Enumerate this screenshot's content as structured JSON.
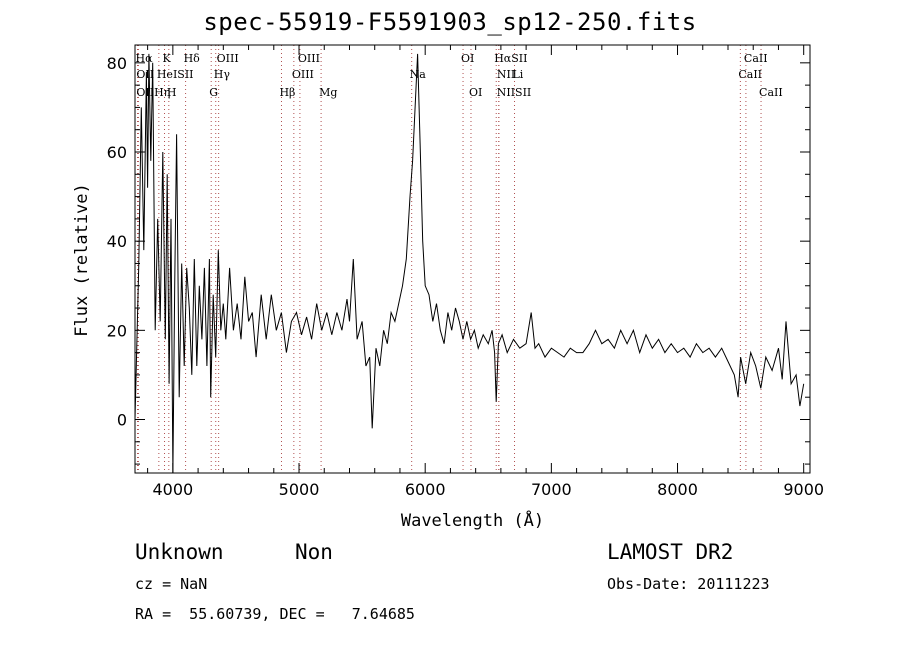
{
  "title": "spec-55919-F5591903_sp12-250.fits",
  "xlabel": "Wavelength (Å)",
  "ylabel": "Flux (relative)",
  "info": {
    "class_text": "Unknown",
    "subclass_text": "Non",
    "survey": "LAMOST DR2",
    "cz": "cz = NaN",
    "obs_date": "Obs-Date: 20111223",
    "radec": "RA =  55.60739, DEC =   7.64685"
  },
  "colors": {
    "line_marker": "#b05050",
    "spectrum": "#000000",
    "axes": "#000000"
  },
  "chart_data": {
    "type": "line",
    "xlim": [
      3700,
      9050
    ],
    "ylim": [
      -12,
      84
    ],
    "x_ticks": [
      4000,
      5000,
      6000,
      7000,
      8000,
      9000
    ],
    "y_ticks": [
      0,
      20,
      40,
      60,
      80
    ],
    "x_minor_step": 200,
    "y_minor_step": 5,
    "grid": false,
    "lines": [
      {
        "label": "Hα",
        "wave": 3720,
        "row": 0
      },
      {
        "label": "K",
        "wave": 3934,
        "row": 0
      },
      {
        "label": "Hδ",
        "wave": 4101,
        "row": 0
      },
      {
        "label": "OIII",
        "wave": 4363,
        "row": 0
      },
      {
        "label": "OIII",
        "wave": 5007,
        "row": 0
      },
      {
        "label": "OI",
        "wave": 6300,
        "row": 0
      },
      {
        "label": "HαSII",
        "wave": 6563,
        "row": 0
      },
      {
        "label": "CaII",
        "wave": 8542,
        "row": 0
      },
      {
        "label": "OII",
        "wave": 3727,
        "row": 1
      },
      {
        "label": "HeISII",
        "wave": 3889,
        "row": 1
      },
      {
        "label": "Hγ",
        "wave": 4340,
        "row": 1
      },
      {
        "label": "OIII",
        "wave": 4959,
        "row": 1
      },
      {
        "label": "Na",
        "wave": 5893,
        "row": 1
      },
      {
        "label": "NII",
        "wave": 6584,
        "row": 1
      },
      {
        "label": "Li",
        "wave": 6708,
        "row": 1
      },
      {
        "label": "CaII",
        "wave": 8498,
        "row": 1
      },
      {
        "label": "OIIHη",
        "wave": 3727,
        "row": 2
      },
      {
        "label": "H",
        "wave": 3968,
        "row": 2
      },
      {
        "label": "G",
        "wave": 4304,
        "row": 2
      },
      {
        "label": "Hβ",
        "wave": 4861,
        "row": 2
      },
      {
        "label": "Mg",
        "wave": 5175,
        "row": 2
      },
      {
        "label": "OI",
        "wave": 6363,
        "row": 2
      },
      {
        "label": "NIISII",
        "wave": 6583,
        "row": 2
      },
      {
        "label": "CaII",
        "wave": 8662,
        "row": 2
      }
    ],
    "series": [
      {
        "points": [
          [
            3700,
            0
          ],
          [
            3730,
            35
          ],
          [
            3750,
            70
          ],
          [
            3770,
            38
          ],
          [
            3790,
            78
          ],
          [
            3800,
            52
          ],
          [
            3810,
            82
          ],
          [
            3825,
            58
          ],
          [
            3840,
            80
          ],
          [
            3860,
            20
          ],
          [
            3880,
            45
          ],
          [
            3900,
            22
          ],
          [
            3920,
            60
          ],
          [
            3940,
            18
          ],
          [
            3955,
            55
          ],
          [
            3970,
            8
          ],
          [
            3985,
            45
          ],
          [
            4000,
            -12
          ],
          [
            4015,
            30
          ],
          [
            4030,
            64
          ],
          [
            4050,
            5
          ],
          [
            4070,
            35
          ],
          [
            4090,
            12
          ],
          [
            4110,
            34
          ],
          [
            4130,
            25
          ],
          [
            4150,
            10
          ],
          [
            4170,
            36
          ],
          [
            4190,
            12
          ],
          [
            4210,
            30
          ],
          [
            4230,
            18
          ],
          [
            4250,
            34
          ],
          [
            4270,
            12
          ],
          [
            4290,
            36
          ],
          [
            4300,
            5
          ],
          [
            4320,
            28
          ],
          [
            4340,
            14
          ],
          [
            4360,
            38
          ],
          [
            4380,
            20
          ],
          [
            4400,
            26
          ],
          [
            4420,
            18
          ],
          [
            4450,
            34
          ],
          [
            4480,
            20
          ],
          [
            4510,
            26
          ],
          [
            4540,
            18
          ],
          [
            4570,
            32
          ],
          [
            4600,
            22
          ],
          [
            4630,
            24
          ],
          [
            4660,
            14
          ],
          [
            4700,
            28
          ],
          [
            4740,
            18
          ],
          [
            4780,
            28
          ],
          [
            4820,
            20
          ],
          [
            4860,
            24
          ],
          [
            4900,
            15
          ],
          [
            4940,
            22
          ],
          [
            4980,
            24
          ],
          [
            5020,
            19
          ],
          [
            5060,
            23
          ],
          [
            5100,
            18
          ],
          [
            5140,
            26
          ],
          [
            5180,
            20
          ],
          [
            5220,
            24
          ],
          [
            5260,
            19
          ],
          [
            5300,
            24
          ],
          [
            5340,
            20
          ],
          [
            5380,
            27
          ],
          [
            5400,
            22
          ],
          [
            5430,
            36
          ],
          [
            5460,
            18
          ],
          [
            5500,
            22
          ],
          [
            5530,
            12
          ],
          [
            5560,
            14
          ],
          [
            5580,
            -2
          ],
          [
            5610,
            16
          ],
          [
            5640,
            12
          ],
          [
            5670,
            20
          ],
          [
            5700,
            17
          ],
          [
            5730,
            24
          ],
          [
            5760,
            22
          ],
          [
            5790,
            26
          ],
          [
            5820,
            30
          ],
          [
            5850,
            36
          ],
          [
            5880,
            50
          ],
          [
            5900,
            58
          ],
          [
            5920,
            70
          ],
          [
            5940,
            82
          ],
          [
            5960,
            62
          ],
          [
            5980,
            40
          ],
          [
            6000,
            30
          ],
          [
            6030,
            28
          ],
          [
            6060,
            22
          ],
          [
            6090,
            26
          ],
          [
            6120,
            20
          ],
          [
            6150,
            17
          ],
          [
            6180,
            24
          ],
          [
            6210,
            20
          ],
          [
            6240,
            25
          ],
          [
            6270,
            22
          ],
          [
            6300,
            18
          ],
          [
            6330,
            22
          ],
          [
            6360,
            18
          ],
          [
            6390,
            20
          ],
          [
            6420,
            16
          ],
          [
            6460,
            19
          ],
          [
            6500,
            17
          ],
          [
            6530,
            20
          ],
          [
            6550,
            15
          ],
          [
            6563,
            4
          ],
          [
            6580,
            17
          ],
          [
            6610,
            19
          ],
          [
            6650,
            15
          ],
          [
            6700,
            18
          ],
          [
            6750,
            16
          ],
          [
            6800,
            17
          ],
          [
            6840,
            24
          ],
          [
            6870,
            16
          ],
          [
            6900,
            17
          ],
          [
            6950,
            14
          ],
          [
            7000,
            16
          ],
          [
            7050,
            15
          ],
          [
            7100,
            14
          ],
          [
            7150,
            16
          ],
          [
            7200,
            15
          ],
          [
            7250,
            15
          ],
          [
            7300,
            17
          ],
          [
            7350,
            20
          ],
          [
            7400,
            17
          ],
          [
            7450,
            18
          ],
          [
            7500,
            16
          ],
          [
            7550,
            20
          ],
          [
            7600,
            17
          ],
          [
            7650,
            20
          ],
          [
            7700,
            15
          ],
          [
            7750,
            19
          ],
          [
            7800,
            16
          ],
          [
            7850,
            18
          ],
          [
            7900,
            15
          ],
          [
            7950,
            17
          ],
          [
            8000,
            15
          ],
          [
            8050,
            16
          ],
          [
            8100,
            14
          ],
          [
            8150,
            17
          ],
          [
            8200,
            15
          ],
          [
            8250,
            16
          ],
          [
            8300,
            14
          ],
          [
            8350,
            16
          ],
          [
            8400,
            13
          ],
          [
            8450,
            10
          ],
          [
            8480,
            5
          ],
          [
            8500,
            14
          ],
          [
            8540,
            8
          ],
          [
            8580,
            15
          ],
          [
            8620,
            12
          ],
          [
            8660,
            7
          ],
          [
            8700,
            14
          ],
          [
            8750,
            11
          ],
          [
            8800,
            16
          ],
          [
            8830,
            9
          ],
          [
            8860,
            22
          ],
          [
            8900,
            8
          ],
          [
            8940,
            10
          ],
          [
            8970,
            3
          ],
          [
            9000,
            8
          ]
        ]
      }
    ]
  }
}
